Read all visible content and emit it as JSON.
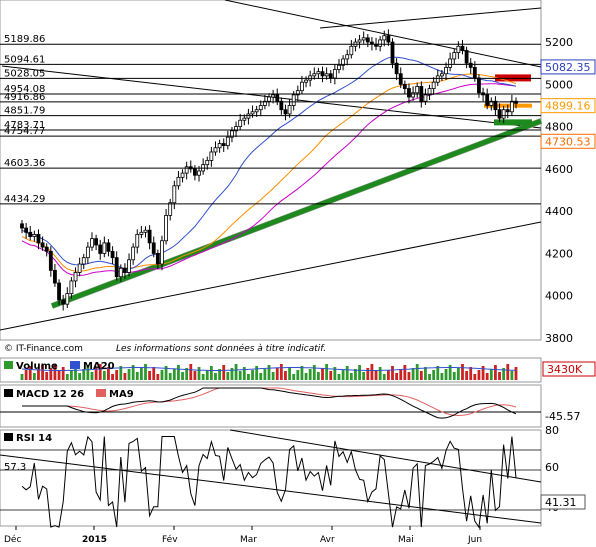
{
  "chart_data": {
    "type": "candlestick",
    "instrument_note": "Les informations sont données à titre indicatif.",
    "copyright": "© IT-Finance.com",
    "y_range": [
      3800,
      5380
    ],
    "y_ticks": [
      3800,
      4000,
      4200,
      4400,
      4600,
      4800,
      5000,
      5200
    ],
    "x_labels": [
      "Déc",
      "2015",
      "Fév",
      "Mar",
      "Avr",
      "Mai",
      "Jun"
    ],
    "horizontal_levels": [
      {
        "label": "5189.86",
        "value": 5189.86
      },
      {
        "label": "5094.61",
        "value": 5094.61
      },
      {
        "label": "5028.05",
        "value": 5028.05
      },
      {
        "label": "4954.08",
        "value": 4954.08
      },
      {
        "label": "4916.86",
        "value": 4916.86
      },
      {
        "label": "4851.79",
        "value": 4851.79
      },
      {
        "label": "4783.71",
        "value": 4783.71
      },
      {
        "label": "4754.77",
        "value": 4754.77
      },
      {
        "label": "4603.36",
        "value": 4603.36
      },
      {
        "label": "4434.29",
        "value": 4434.29
      }
    ],
    "value_badges": [
      {
        "label": "5082.35",
        "color": "#2b3fbf",
        "value": 5082.35
      },
      {
        "label": "4899.16",
        "color": "#ff9900",
        "value": 4899.16
      },
      {
        "label": "4730.53",
        "color": "#ff6a00",
        "value": 4730.53
      }
    ],
    "series_colors": {
      "ma_blue": "#3050d0",
      "ma_orange": "#ff8c00",
      "ma_magenta": "#cc00cc",
      "trend_green": "#1e8a1e",
      "zone_red": "#cc0000"
    },
    "candles": [
      4320,
      4300,
      4280,
      4290,
      4250,
      4230,
      4210,
      4120,
      4060,
      3980,
      3960,
      4010,
      4070,
      4110,
      4150,
      4180,
      4230,
      4270,
      4240,
      4200,
      4250,
      4210,
      4180,
      4090,
      4130,
      4110,
      4170,
      4230,
      4290,
      4300,
      4310,
      4250,
      4200,
      4150,
      4260,
      4380,
      4440,
      4520,
      4560,
      4580,
      4610,
      4600,
      4570,
      4590,
      4620,
      4640,
      4680,
      4700,
      4720,
      4710,
      4750,
      4780,
      4800,
      4830,
      4840,
      4860,
      4870,
      4880,
      4900,
      4920,
      4940,
      4950,
      4920,
      4880,
      4860,
      4900,
      4950,
      4970,
      5010,
      5020,
      5040,
      5050,
      5060,
      5040,
      5050,
      5030,
      5070,
      5090,
      5120,
      5140,
      5180,
      5200,
      5210,
      5220,
      5200,
      5190,
      5180,
      5210,
      5230,
      5200,
      5100,
      5050,
      5000,
      4980,
      4940,
      4960,
      4990,
      4920,
      4950,
      4980,
      5010,
      5040,
      5050,
      5080,
      5120,
      5150,
      5180,
      5160,
      5100,
      5080,
      5030,
      4960,
      4950,
      4900,
      4920,
      4880,
      4840,
      4880,
      4870,
      4920,
      4910
    ],
    "volume": {
      "label": "Volume",
      "ma_label": "MA20",
      "badge": "3430K"
    },
    "macd": {
      "label": "MACD 12 26",
      "signal_label": "MA9",
      "badge": "-45.57"
    },
    "rsi": {
      "label": "RSI 14",
      "level_left": "57.3",
      "badge": "41.31",
      "ticks": [
        "80",
        "60",
        "40"
      ]
    }
  }
}
